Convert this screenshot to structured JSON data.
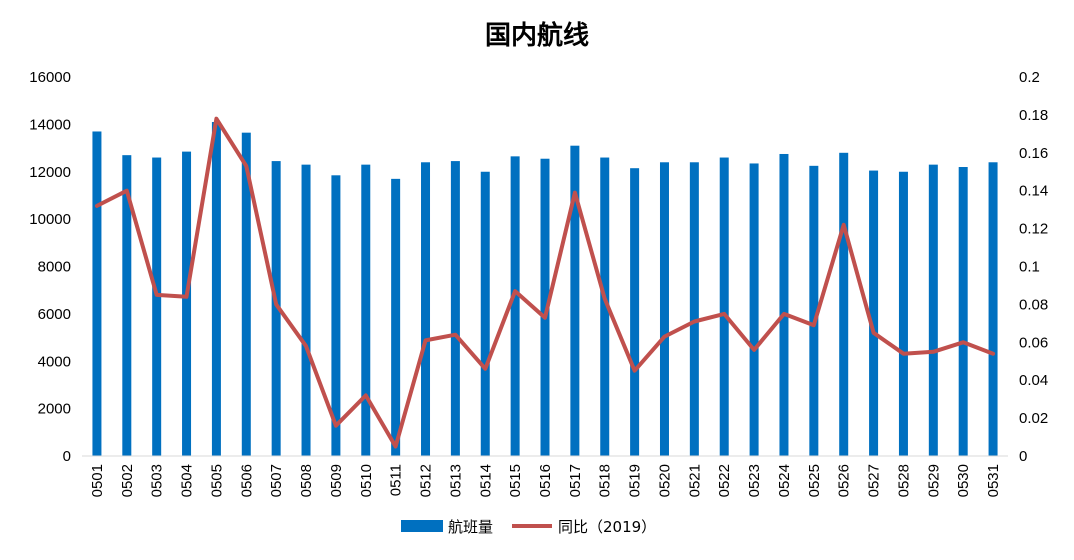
{
  "chart_data": {
    "type": "bar+line",
    "title": "国内航线",
    "categories": [
      "0501",
      "0502",
      "0503",
      "0504",
      "0505",
      "0506",
      "0507",
      "0508",
      "0509",
      "0510",
      "0511",
      "0512",
      "0513",
      "0514",
      "0515",
      "0516",
      "0517",
      "0518",
      "0519",
      "0520",
      "0521",
      "0522",
      "0523",
      "0524",
      "0525",
      "0526",
      "0527",
      "0528",
      "0529",
      "0530",
      "0531"
    ],
    "series": [
      {
        "name": "航班量",
        "type": "bar",
        "axis": "left",
        "color": "#0070c0",
        "values": [
          13700,
          12700,
          12600,
          12850,
          14100,
          13650,
          12450,
          12300,
          11850,
          12300,
          11700,
          12400,
          12450,
          12000,
          12650,
          12550,
          13100,
          12600,
          12150,
          12400,
          12400,
          12600,
          12350,
          12750,
          12250,
          12800,
          12050,
          12000,
          12300,
          12200,
          12400
        ]
      },
      {
        "name": "同比（2019）",
        "type": "line",
        "axis": "right",
        "color": "#c0504d",
        "values": [
          0.132,
          0.14,
          0.085,
          0.084,
          0.178,
          0.153,
          0.08,
          0.058,
          0.016,
          0.032,
          0.005,
          0.061,
          0.064,
          0.046,
          0.087,
          0.073,
          0.139,
          0.083,
          0.045,
          0.063,
          0.071,
          0.075,
          0.056,
          0.075,
          0.069,
          0.122,
          0.065,
          0.054,
          0.055,
          0.06,
          0.054
        ]
      }
    ],
    "y_left": {
      "min": 0,
      "max": 16000,
      "ticks": [
        "0",
        "2000",
        "4000",
        "6000",
        "8000",
        "10000",
        "12000",
        "14000",
        "16000"
      ]
    },
    "y_right": {
      "min": 0,
      "max": 0.2,
      "ticks": [
        "0",
        "0.02",
        "0.04",
        "0.06",
        "0.08",
        "0.1",
        "0.12",
        "0.14",
        "0.16",
        "0.18",
        "0.2"
      ]
    },
    "grid": false,
    "legend_position": "bottom-center"
  }
}
